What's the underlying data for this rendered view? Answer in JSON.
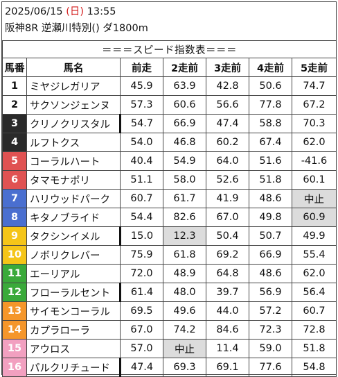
{
  "header": {
    "date": "2025/06/15",
    "day_open": "(",
    "day": "日",
    "day_close": ")",
    "time": "13:55",
    "race": "阪神8R 逆瀬川特別() ダ1800m"
  },
  "table": {
    "title": "＝＝＝スピード指数表＝＝＝",
    "columns": [
      "馬番",
      "馬名",
      "前走",
      "2走前",
      "3走前",
      "4走前",
      "5走前"
    ],
    "rows": [
      {
        "num": "1",
        "name": "ミヤジレガリア",
        "v": [
          "45.9",
          "63.9",
          "42.8",
          "50.6",
          "74.7"
        ],
        "hl": [],
        "bar": false
      },
      {
        "num": "2",
        "name": "サクソンジェンヌ",
        "v": [
          "57.3",
          "60.6",
          "56.6",
          "77.8",
          "67.2"
        ],
        "hl": [],
        "bar": false
      },
      {
        "num": "3",
        "name": "クリノクリスタル",
        "v": [
          "54.7",
          "66.9",
          "47.4",
          "58.8",
          "70.3"
        ],
        "hl": [],
        "bar": true
      },
      {
        "num": "4",
        "name": "ルフトクス",
        "v": [
          "54.0",
          "46.8",
          "60.2",
          "67.4",
          "62.0"
        ],
        "hl": [],
        "bar": false
      },
      {
        "num": "5",
        "name": "コーラルハート",
        "v": [
          "40.4",
          "54.9",
          "64.0",
          "51.6",
          "-41.6"
        ],
        "hl": [],
        "bar": false
      },
      {
        "num": "6",
        "name": "タマモナポリ",
        "v": [
          "51.1",
          "58.0",
          "52.6",
          "51.8",
          "60.1"
        ],
        "hl": [],
        "bar": false
      },
      {
        "num": "7",
        "name": "ハリウッドパーク",
        "v": [
          "60.7",
          "61.7",
          "41.9",
          "48.6",
          "中止"
        ],
        "hl": [
          4
        ],
        "bar": false
      },
      {
        "num": "8",
        "name": "キタノブライド",
        "v": [
          "54.4",
          "82.6",
          "67.0",
          "49.8",
          "60.9"
        ],
        "hl": [
          4
        ],
        "bar": false
      },
      {
        "num": "9",
        "name": "タクシンイメル",
        "v": [
          "15.0",
          "12.3",
          "50.4",
          "50.7",
          "49.9"
        ],
        "hl": [
          1
        ],
        "bar": true
      },
      {
        "num": "10",
        "name": "ノボリクレバー",
        "v": [
          "75.9",
          "61.8",
          "69.2",
          "66.9",
          "55.4"
        ],
        "hl": [],
        "bar": false
      },
      {
        "num": "11",
        "name": "エーリアル",
        "v": [
          "72.0",
          "48.9",
          "64.8",
          "48.6",
          "62.0"
        ],
        "hl": [],
        "bar": false
      },
      {
        "num": "12",
        "name": "フローラルセント",
        "v": [
          "61.4",
          "48.0",
          "39.7",
          "56.9",
          "56.4"
        ],
        "hl": [],
        "bar": true
      },
      {
        "num": "13",
        "name": "サイモンコーラル",
        "v": [
          "69.5",
          "49.6",
          "44.0",
          "57.2",
          "60.7"
        ],
        "hl": [],
        "bar": false
      },
      {
        "num": "14",
        "name": "カプラローラ",
        "v": [
          "67.0",
          "74.2",
          "84.6",
          "72.3",
          "72.8"
        ],
        "hl": [],
        "bar": false
      },
      {
        "num": "15",
        "name": "アウロス",
        "v": [
          "57.0",
          "中止",
          "11.4",
          "59.0",
          "51.8"
        ],
        "hl": [
          1
        ],
        "bar": false
      },
      {
        "num": "16",
        "name": "パルクリチュード",
        "v": [
          "47.4",
          "69.3",
          "69.1",
          "77.6",
          "54.8"
        ],
        "hl": [],
        "bar": true
      }
    ]
  },
  "colors": {
    "frame_1": "#ffffff",
    "frame_2": "#2a2a2a",
    "frame_3": "#e05252",
    "frame_4": "#4a6fd0",
    "frame_5": "#f5c518",
    "frame_6": "#3aaa3a",
    "frame_7": "#f5962a",
    "frame_8": "#f2a0c0",
    "highlight": "#dcdcdc",
    "sunday": "#d42020"
  }
}
